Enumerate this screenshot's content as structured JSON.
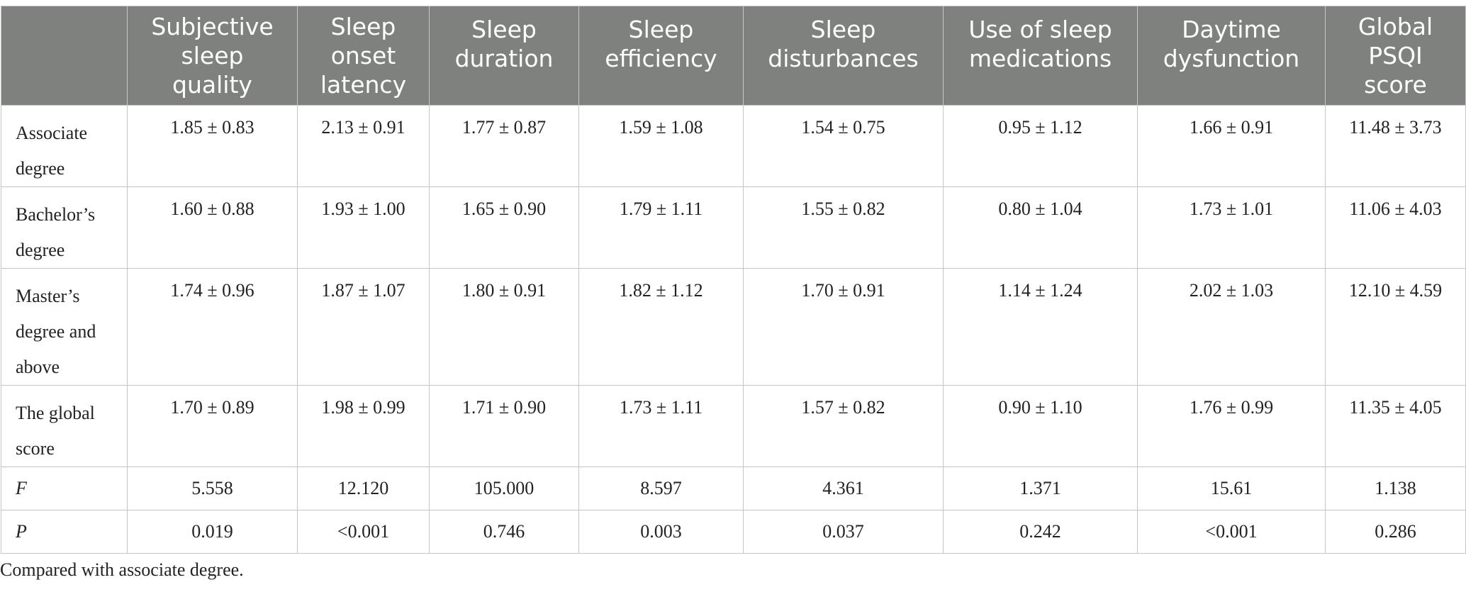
{
  "table": {
    "headers": [
      "",
      "Subjective sleep quality",
      "Sleep onset latency",
      "Sleep duration",
      "Sleep efficiency",
      "Sleep disturbances",
      "Use of sleep medications",
      "Daytime dysfunction",
      "Global PSQI score"
    ],
    "header_lines": [
      [
        ""
      ],
      [
        "Subjective",
        "sleep",
        "quality"
      ],
      [
        "Sleep",
        "onset",
        "latency"
      ],
      [
        "Sleep",
        "duration"
      ],
      [
        "Sleep",
        "efficiency"
      ],
      [
        "Sleep",
        "disturbances"
      ],
      [
        "Use of sleep",
        "medications"
      ],
      [
        "Daytime",
        "dysfunction"
      ],
      [
        "Global",
        "PSQI",
        "score"
      ]
    ],
    "rows": [
      {
        "label_lines": [
          "Associate",
          "degree"
        ],
        "italic": false,
        "cells": [
          "1.85 ± 0.83",
          "2.13 ± 0.91",
          "1.77 ± 0.87",
          "1.59 ± 1.08",
          "1.54 ± 0.75",
          "0.95 ± 1.12",
          "1.66 ± 0.91",
          "11.48 ± 3.73"
        ]
      },
      {
        "label_lines": [
          "Bachelor’s",
          "degree"
        ],
        "italic": false,
        "cells": [
          "1.60 ± 0.88",
          "1.93 ± 1.00",
          "1.65 ± 0.90",
          "1.79 ± 1.11",
          "1.55 ± 0.82",
          "0.80 ± 1.04",
          "1.73 ± 1.01",
          "11.06 ± 4.03"
        ]
      },
      {
        "label_lines": [
          "Master’s",
          "degree and",
          "above"
        ],
        "italic": false,
        "cells": [
          "1.74 ± 0.96",
          "1.87 ± 1.07",
          "1.80 ± 0.91",
          "1.82 ± 1.12",
          "1.70 ± 0.91",
          "1.14 ± 1.24",
          "2.02 ± 1.03",
          "12.10 ± 4.59"
        ]
      },
      {
        "label_lines": [
          "The global",
          "score"
        ],
        "italic": false,
        "cells": [
          "1.70 ± 0.89",
          "1.98 ± 0.99",
          "1.71 ± 0.90",
          "1.73 ± 1.11",
          "1.57 ± 0.82",
          "0.90 ± 1.10",
          "1.76 ± 0.99",
          "11.35 ± 4.05"
        ]
      },
      {
        "label_lines": [
          "F"
        ],
        "italic": true,
        "cells": [
          "5.558",
          "12.120",
          "105.000",
          "8.597",
          "4.361",
          "1.371",
          "15.61",
          "1.138"
        ]
      },
      {
        "label_lines": [
          "P"
        ],
        "italic": true,
        "cells": [
          "0.019",
          "<0.001",
          "0.746",
          "0.003",
          "0.037",
          "0.242",
          "<0.001",
          "0.286"
        ]
      }
    ]
  },
  "footnote": "Compared with associate degree.",
  "colors": {
    "header_bg": "#7f817e",
    "header_text": "#ffffff",
    "grid": "#c4c4c4"
  }
}
